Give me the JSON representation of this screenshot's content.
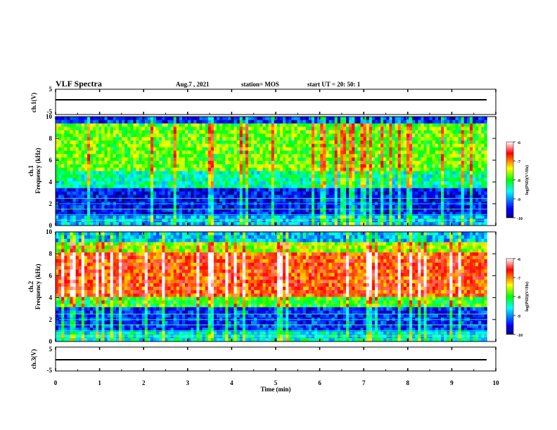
{
  "header": {
    "title": "VLF Spectra",
    "date": "Aug.7 , 2021",
    "station": "station= MOS",
    "start": "start  UT =   20: 50: 1"
  },
  "chart_data": [
    {
      "type": "line",
      "panel": "ch1-waveform",
      "ylabel": "ch.1(V)",
      "ylim": [
        -5,
        5
      ],
      "yticks": [
        "5",
        "-5"
      ],
      "xlim": [
        0,
        10
      ],
      "values_description_x": [
        0,
        9.8
      ],
      "y": [
        0,
        0
      ]
    },
    {
      "type": "heatmap",
      "panel": "ch1-spectrogram",
      "ylabel": "ch.1\nFrequency  (kHz)",
      "ylim": [
        0,
        10
      ],
      "yticks": [
        "0",
        "2",
        "4",
        "6",
        "8",
        "10"
      ],
      "xlim": [
        0,
        10
      ],
      "data_xmax": 9.8,
      "colorbar": {
        "label": "log(PSD)(V²/Hz)",
        "range": [
          -10,
          -6
        ],
        "ticks": [
          "-6",
          "-7",
          "-8",
          "-9",
          "-10"
        ]
      }
    },
    {
      "type": "heatmap",
      "panel": "ch2-spectrogram",
      "ylabel": "ch.2\nFrequency  (kHz)",
      "ylim": [
        0,
        10
      ],
      "yticks": [
        "0",
        "2",
        "4",
        "6",
        "8",
        "10"
      ],
      "xlim": [
        0,
        10
      ],
      "data_xmax": 9.8,
      "colorbar": {
        "label": "log(PSD)(V²/Hz)",
        "range": [
          -10,
          -6
        ],
        "ticks": [
          "-6",
          "-7",
          "-8",
          "-9",
          "-10"
        ]
      }
    },
    {
      "type": "line",
      "panel": "ch3-waveform",
      "ylabel": "ch.3(V)",
      "ylim": [
        -5,
        5
      ],
      "yticks": [
        "5",
        "-5"
      ],
      "xlim": [
        0,
        10
      ],
      "y": [
        0,
        0
      ],
      "xlabel": "Time  (min)",
      "xticks": [
        "0",
        "1",
        "2",
        "3",
        "4",
        "5",
        "6",
        "7",
        "8",
        "9",
        "10"
      ]
    }
  ],
  "labels": {
    "ch1_wave": "ch.1(V)",
    "ch1_spec_a": "ch.1",
    "ch1_spec_b": "Frequency  (kHz)",
    "ch2_spec_a": "ch.2",
    "ch2_spec_b": "Frequency  (kHz)",
    "ch3_wave": "ch.3(V)",
    "xlabel": "Time  (min)",
    "cb_label": "log(PSD)(V²/Hz)"
  }
}
